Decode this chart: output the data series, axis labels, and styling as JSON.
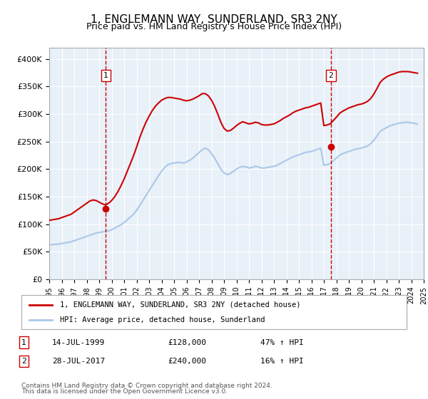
{
  "title": "1, ENGLEMANN WAY, SUNDERLAND, SR3 2NY",
  "subtitle": "Price paid vs. HM Land Registry's House Price Index (HPI)",
  "legend_line1": "1, ENGLEMANN WAY, SUNDERLAND, SR3 2NY (detached house)",
  "legend_line2": "HPI: Average price, detached house, Sunderland",
  "annotation1_label": "1",
  "annotation1_date": "14-JUL-1999",
  "annotation1_price": "£128,000",
  "annotation1_hpi": "47% ↑ HPI",
  "annotation1_year": 1999.54,
  "annotation1_value": 128000,
  "annotation2_label": "2",
  "annotation2_date": "28-JUL-2017",
  "annotation2_price": "£240,000",
  "annotation2_hpi": "16% ↑ HPI",
  "annotation2_year": 2017.57,
  "annotation2_value": 240000,
  "footer1": "Contains HM Land Registry data © Crown copyright and database right 2024.",
  "footer2": "This data is licensed under the Open Government Licence v3.0.",
  "red_color": "#cc0000",
  "blue_color": "#aac8e8",
  "background_color": "#e8f0f8",
  "ylim": [
    0,
    420000
  ],
  "yticks": [
    0,
    50000,
    100000,
    150000,
    200000,
    250000,
    300000,
    350000,
    400000
  ],
  "ytick_labels": [
    "£0",
    "£50K",
    "£100K",
    "£150K",
    "£200K",
    "£250K",
    "£300K",
    "£350K",
    "£400K"
  ],
  "hpi_years": [
    1995.0,
    1995.25,
    1995.5,
    1995.75,
    1996.0,
    1996.25,
    1996.5,
    1996.75,
    1997.0,
    1997.25,
    1997.5,
    1997.75,
    1998.0,
    1998.25,
    1998.5,
    1998.75,
    1999.0,
    1999.25,
    1999.5,
    1999.75,
    2000.0,
    2000.25,
    2000.5,
    2000.75,
    2001.0,
    2001.25,
    2001.5,
    2001.75,
    2002.0,
    2002.25,
    2002.5,
    2002.75,
    2003.0,
    2003.25,
    2003.5,
    2003.75,
    2004.0,
    2004.25,
    2004.5,
    2004.75,
    2005.0,
    2005.25,
    2005.5,
    2005.75,
    2006.0,
    2006.25,
    2006.5,
    2006.75,
    2007.0,
    2007.25,
    2007.5,
    2007.75,
    2008.0,
    2008.25,
    2008.5,
    2008.75,
    2009.0,
    2009.25,
    2009.5,
    2009.75,
    2010.0,
    2010.25,
    2010.5,
    2010.75,
    2011.0,
    2011.25,
    2011.5,
    2011.75,
    2012.0,
    2012.25,
    2012.5,
    2012.75,
    2013.0,
    2013.25,
    2013.5,
    2013.75,
    2014.0,
    2014.25,
    2014.5,
    2014.75,
    2015.0,
    2015.25,
    2015.5,
    2015.75,
    2016.0,
    2016.25,
    2016.5,
    2016.75,
    2017.0,
    2017.25,
    2017.5,
    2017.75,
    2018.0,
    2018.25,
    2018.5,
    2018.75,
    2019.0,
    2019.25,
    2019.5,
    2019.75,
    2020.0,
    2020.25,
    2020.5,
    2020.75,
    2021.0,
    2021.25,
    2021.5,
    2021.75,
    2022.0,
    2022.25,
    2022.5,
    2022.75,
    2023.0,
    2023.25,
    2023.5,
    2023.75,
    2024.0,
    2024.25,
    2024.5
  ],
  "hpi_values": [
    62000,
    63000,
    63500,
    64000,
    65000,
    66000,
    67000,
    68000,
    70000,
    72000,
    74000,
    76000,
    78000,
    80000,
    82000,
    84000,
    85000,
    86000,
    87000,
    88000,
    90000,
    93000,
    96000,
    99000,
    103000,
    108000,
    113000,
    118000,
    125000,
    134000,
    143000,
    152000,
    161000,
    170000,
    179000,
    188000,
    196000,
    203000,
    208000,
    210000,
    211000,
    212000,
    212000,
    211000,
    213000,
    216000,
    220000,
    225000,
    230000,
    235000,
    238000,
    235000,
    228000,
    220000,
    210000,
    200000,
    193000,
    190000,
    192000,
    196000,
    200000,
    203000,
    205000,
    204000,
    202000,
    203000,
    205000,
    204000,
    202000,
    202000,
    203000,
    204000,
    205000,
    207000,
    210000,
    213000,
    216000,
    219000,
    222000,
    224000,
    226000,
    228000,
    230000,
    231000,
    232000,
    234000,
    236000,
    238000,
    207000,
    208000,
    210000,
    215000,
    220000,
    225000,
    228000,
    230000,
    232000,
    234000,
    236000,
    237000,
    238000,
    240000,
    242000,
    246000,
    252000,
    260000,
    268000,
    272000,
    275000,
    278000,
    280000,
    282000,
    283000,
    284000,
    285000,
    285000,
    284000,
    283000,
    282000
  ],
  "red_years": [
    1995.0,
    1995.25,
    1995.5,
    1995.75,
    1996.0,
    1996.25,
    1996.5,
    1996.75,
    1997.0,
    1997.25,
    1997.5,
    1997.75,
    1998.0,
    1998.25,
    1998.5,
    1998.75,
    1999.0,
    1999.25,
    1999.5,
    1999.75,
    2000.0,
    2000.25,
    2000.5,
    2000.75,
    2001.0,
    2001.25,
    2001.5,
    2001.75,
    2002.0,
    2002.25,
    2002.5,
    2002.75,
    2003.0,
    2003.25,
    2003.5,
    2003.75,
    2004.0,
    2004.25,
    2004.5,
    2004.75,
    2005.0,
    2005.25,
    2005.5,
    2005.75,
    2006.0,
    2006.25,
    2006.5,
    2006.75,
    2007.0,
    2007.25,
    2007.5,
    2007.75,
    2008.0,
    2008.25,
    2008.5,
    2008.75,
    2009.0,
    2009.25,
    2009.5,
    2009.75,
    2010.0,
    2010.25,
    2010.5,
    2010.75,
    2011.0,
    2011.25,
    2011.5,
    2011.75,
    2012.0,
    2012.25,
    2012.5,
    2012.75,
    2013.0,
    2013.25,
    2013.5,
    2013.75,
    2014.0,
    2014.25,
    2014.5,
    2014.75,
    2015.0,
    2015.25,
    2015.5,
    2015.75,
    2016.0,
    2016.25,
    2016.5,
    2016.75,
    2017.0,
    2017.25,
    2017.5,
    2017.75,
    2018.0,
    2018.25,
    2018.5,
    2018.75,
    2019.0,
    2019.25,
    2019.5,
    2019.75,
    2020.0,
    2020.25,
    2020.5,
    2020.75,
    2021.0,
    2021.25,
    2021.5,
    2021.75,
    2022.0,
    2022.25,
    2022.5,
    2022.75,
    2023.0,
    2023.25,
    2023.5,
    2023.75,
    2024.0,
    2024.25,
    2024.5
  ],
  "red_values": [
    107000,
    108000,
    109000,
    110000,
    112000,
    114000,
    116000,
    118000,
    122000,
    126000,
    130000,
    134000,
    138000,
    142000,
    144000,
    143000,
    140000,
    137000,
    135000,
    138000,
    143000,
    150000,
    159000,
    170000,
    182000,
    196000,
    210000,
    224000,
    240000,
    257000,
    272000,
    285000,
    296000,
    306000,
    314000,
    320000,
    325000,
    328000,
    330000,
    330000,
    329000,
    328000,
    327000,
    325000,
    324000,
    325000,
    327000,
    330000,
    333000,
    337000,
    337000,
    333000,
    325000,
    314000,
    300000,
    285000,
    274000,
    269000,
    270000,
    274000,
    279000,
    283000,
    286000,
    284000,
    282000,
    283000,
    285000,
    284000,
    281000,
    280000,
    280000,
    281000,
    282000,
    285000,
    288000,
    292000,
    295000,
    298000,
    302000,
    305000,
    307000,
    309000,
    311000,
    312000,
    314000,
    316000,
    318000,
    320000,
    279000,
    280000,
    282000,
    288000,
    294000,
    301000,
    305000,
    308000,
    311000,
    313000,
    315000,
    317000,
    318000,
    320000,
    323000,
    328000,
    336000,
    346000,
    357000,
    363000,
    367000,
    370000,
    372000,
    374000,
    376000,
    377000,
    377000,
    377000,
    376000,
    375000,
    374000
  ]
}
